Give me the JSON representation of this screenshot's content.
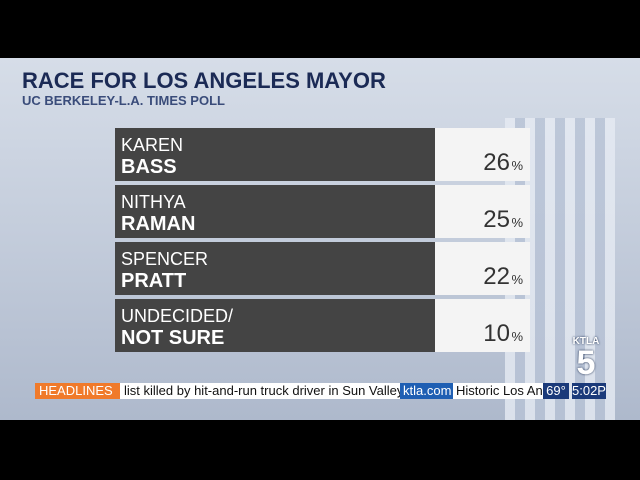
{
  "graphic": {
    "title": "RACE FOR LOS ANGELES MAYOR",
    "subtitle": "UC BERKELEY-L.A. TIMES POLL",
    "rows": [
      {
        "first": "KAREN",
        "last": "BASS",
        "value": "26",
        "unit": "%"
      },
      {
        "first": "NITHYA",
        "last": "RAMAN",
        "value": "25",
        "unit": "%"
      },
      {
        "first": "SPENCER",
        "last": "PRATT",
        "value": "22",
        "unit": "%"
      },
      {
        "first": "UNDECIDED/",
        "last": "NOT SURE",
        "value": "10",
        "unit": "%"
      }
    ]
  },
  "ticker": {
    "label": "HEADLINES",
    "text": "list killed by hit-and-run truck driver in Sun Valley",
    "site": "ktla.com",
    "next": "Historic Los Ang",
    "temp": "69°",
    "time": "5:02P"
  },
  "logo": {
    "name": "KTLA",
    "number": "5"
  }
}
